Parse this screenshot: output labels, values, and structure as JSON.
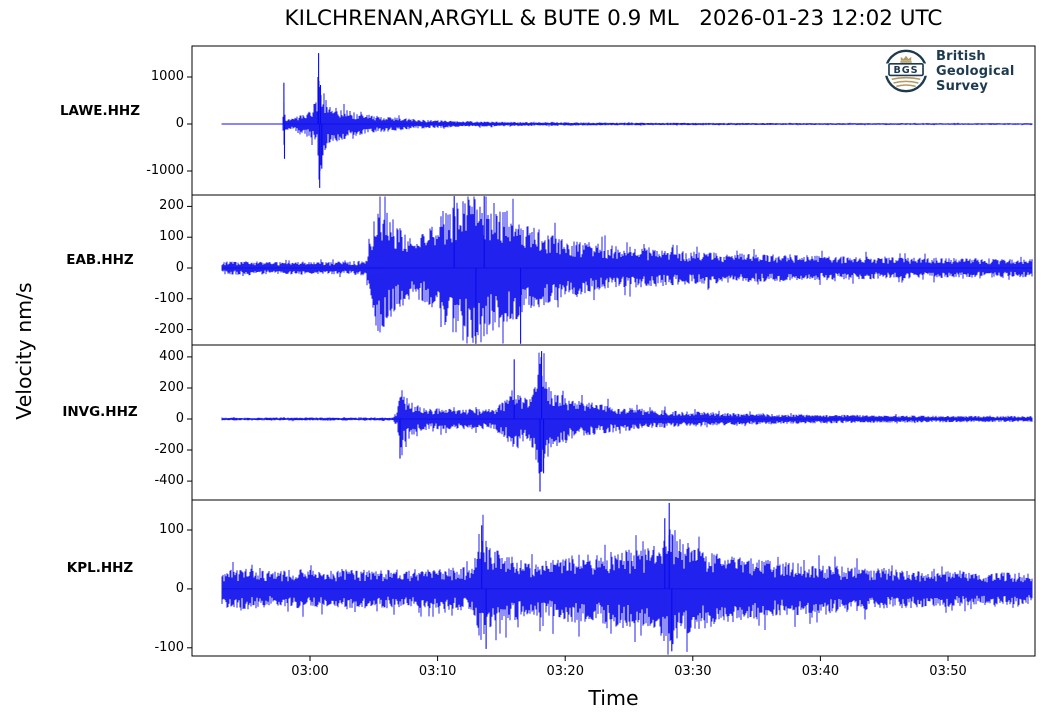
{
  "title": "KILCHRENAN,ARGYLL & BUTE 0.9 ML   2026-01-23 12:02 UTC",
  "axes": {
    "xlabel": "Time",
    "ylabel": "Velocity nm/s"
  },
  "logo": {
    "abbr": "BGS",
    "name_lines": [
      "British",
      "Geological",
      "Survey"
    ],
    "navy": "#1d3a4f",
    "gold": "#b39a62"
  },
  "colors": {
    "trace": "#0a0aee",
    "axis": "#000000",
    "background": "#ffffff"
  },
  "chart_data": {
    "type": "line",
    "title": "KILCHRENAN,ARGYLL & BUTE 0.9 ML   2026-01-23 12:02 UTC",
    "xlabel": "Time",
    "ylabel": "Velocity nm/s",
    "x_unit": "UTC time in minutes measured from trace start (~02:53)",
    "x_ticks": [
      {
        "label": "03:00",
        "t": 6.9
      },
      {
        "label": "03:10",
        "t": 16.9
      },
      {
        "label": "03:20",
        "t": 26.9
      },
      {
        "label": "03:30",
        "t": 36.9
      },
      {
        "label": "03:40",
        "t": 46.9
      },
      {
        "label": "03:50",
        "t": 56.9
      }
    ],
    "t_end": 63.5,
    "grid": false,
    "legend": "none",
    "traces": [
      {
        "station": "LAWE.HHZ",
        "yticks": [
          1000,
          0,
          -1000
        ],
        "ylim": [
          -1510,
          1660
        ],
        "seed": 11,
        "envelope": [
          [
            0,
            9
          ],
          [
            4.5,
            9
          ],
          [
            4.75,
            10
          ],
          [
            4.85,
            620
          ],
          [
            4.95,
            140
          ],
          [
            5.5,
            115
          ],
          [
            6.2,
            240
          ],
          [
            7.0,
            310
          ],
          [
            7.45,
            520
          ],
          [
            7.6,
            1480
          ],
          [
            7.75,
            900
          ],
          [
            8.1,
            560
          ],
          [
            8.7,
            430
          ],
          [
            9.5,
            330
          ],
          [
            10.5,
            260
          ],
          [
            12,
            195
          ],
          [
            13.5,
            145
          ],
          [
            15,
            105
          ],
          [
            17,
            78
          ],
          [
            19,
            60
          ],
          [
            22,
            48
          ],
          [
            25,
            40
          ],
          [
            28,
            34
          ],
          [
            32,
            29
          ],
          [
            37,
            25
          ],
          [
            43,
            22
          ],
          [
            50,
            20
          ],
          [
            57,
            19
          ],
          [
            63.5,
            18
          ]
        ],
        "spikes": [
          [
            4.85,
            880
          ],
          [
            4.9,
            -740
          ],
          [
            7.52,
            1000
          ],
          [
            7.57,
            1510
          ],
          [
            7.66,
            -1360
          ],
          [
            7.72,
            830
          ],
          [
            7.82,
            -950
          ]
        ]
      },
      {
        "station": "EAB.HHZ",
        "yticks": [
          200,
          100,
          0,
          -100,
          -200
        ],
        "ylim": [
          -250,
          237
        ],
        "seed": 23,
        "envelope": [
          [
            0,
            20
          ],
          [
            2,
            24
          ],
          [
            4,
            19
          ],
          [
            6,
            22
          ],
          [
            8,
            19
          ],
          [
            10,
            22
          ],
          [
            11.3,
            25
          ],
          [
            11.7,
            120
          ],
          [
            12.1,
            200
          ],
          [
            12.5,
            215
          ],
          [
            13,
            175
          ],
          [
            13.7,
            140
          ],
          [
            14.4,
            115
          ],
          [
            15.1,
            95
          ],
          [
            15.9,
            115
          ],
          [
            16.8,
            150
          ],
          [
            17.8,
            210
          ],
          [
            18.6,
            235
          ],
          [
            19.4,
            245
          ],
          [
            20.2,
            248
          ],
          [
            21,
            220
          ],
          [
            21.9,
            205
          ],
          [
            22.8,
            175
          ],
          [
            23.8,
            155
          ],
          [
            24.8,
            130
          ],
          [
            25.8,
            112
          ],
          [
            27,
            97
          ],
          [
            28.5,
            86
          ],
          [
            30,
            76
          ],
          [
            32,
            66
          ],
          [
            34.5,
            59
          ],
          [
            37,
            53
          ],
          [
            40,
            48
          ],
          [
            43,
            44
          ],
          [
            46,
            41
          ],
          [
            50,
            37
          ],
          [
            54,
            34
          ],
          [
            58,
            32
          ],
          [
            63.5,
            30
          ]
        ],
        "spikes": [
          [
            18.2,
            268
          ],
          [
            19.9,
            -280
          ],
          [
            20.55,
            285
          ],
          [
            23.4,
            -262
          ]
        ]
      },
      {
        "station": "INVG.HHZ",
        "yticks": [
          400,
          200,
          0,
          -200,
          -400
        ],
        "ylim": [
          -522,
          477
        ],
        "seed": 37,
        "envelope": [
          [
            0,
            9
          ],
          [
            6,
            10
          ],
          [
            13.4,
            10
          ],
          [
            13.75,
            60
          ],
          [
            13.95,
            195
          ],
          [
            14.25,
            160
          ],
          [
            14.8,
            115
          ],
          [
            15.5,
            82
          ],
          [
            16.3,
            66
          ],
          [
            17.2,
            72
          ],
          [
            18.2,
            62
          ],
          [
            19.2,
            68
          ],
          [
            20.2,
            63
          ],
          [
            21.2,
            72
          ],
          [
            22.2,
            120
          ],
          [
            22.8,
            200
          ],
          [
            23.4,
            165
          ],
          [
            24.1,
            150
          ],
          [
            24.6,
            260
          ],
          [
            25.0,
            420
          ],
          [
            25.4,
            280
          ],
          [
            25.9,
            195
          ],
          [
            26.6,
            160
          ],
          [
            27.5,
            132
          ],
          [
            28.7,
            110
          ],
          [
            30,
            93
          ],
          [
            31.5,
            78
          ],
          [
            33,
            66
          ],
          [
            35,
            55
          ],
          [
            37.5,
            47
          ],
          [
            40,
            40
          ],
          [
            43,
            34
          ],
          [
            46.5,
            29
          ],
          [
            50,
            25
          ],
          [
            55,
            22
          ],
          [
            60,
            20
          ],
          [
            63.5,
            19
          ]
        ],
        "spikes": [
          [
            13.95,
            -255
          ],
          [
            22.9,
            385
          ],
          [
            24.92,
            -468
          ],
          [
            25.05,
            438
          ],
          [
            25.2,
            -350
          ]
        ]
      },
      {
        "station": "KPL.HHZ",
        "yticks": [
          100,
          0,
          -100
        ],
        "ylim": [
          -114,
          151
        ],
        "seed": 49,
        "envelope": [
          [
            0,
            32
          ],
          [
            2,
            35
          ],
          [
            4,
            30
          ],
          [
            6,
            34
          ],
          [
            8,
            31
          ],
          [
            10,
            35
          ],
          [
            12,
            32
          ],
          [
            14,
            34
          ],
          [
            16,
            33
          ],
          [
            18,
            36
          ],
          [
            19.6,
            38
          ],
          [
            20.1,
            85
          ],
          [
            20.5,
            95
          ],
          [
            21,
            75
          ],
          [
            21.8,
            62
          ],
          [
            22.8,
            54
          ],
          [
            24,
            48
          ],
          [
            25.5,
            52
          ],
          [
            27,
            56
          ],
          [
            28.5,
            60
          ],
          [
            30,
            62
          ],
          [
            31.5,
            66
          ],
          [
            33,
            68
          ],
          [
            34.3,
            76
          ],
          [
            34.9,
            115
          ],
          [
            35.4,
            92
          ],
          [
            36.2,
            82
          ],
          [
            37.2,
            72
          ],
          [
            38.5,
            64
          ],
          [
            40,
            58
          ],
          [
            42,
            52
          ],
          [
            44.5,
            46
          ],
          [
            47,
            42
          ],
          [
            50,
            38
          ],
          [
            53,
            34
          ],
          [
            56,
            31
          ],
          [
            59,
            29
          ],
          [
            63.5,
            27
          ]
        ],
        "spikes": [
          [
            20.35,
            108
          ],
          [
            20.7,
            -102
          ],
          [
            34.7,
            120
          ],
          [
            35.05,
            146
          ],
          [
            35.25,
            -106
          ]
        ]
      }
    ]
  }
}
